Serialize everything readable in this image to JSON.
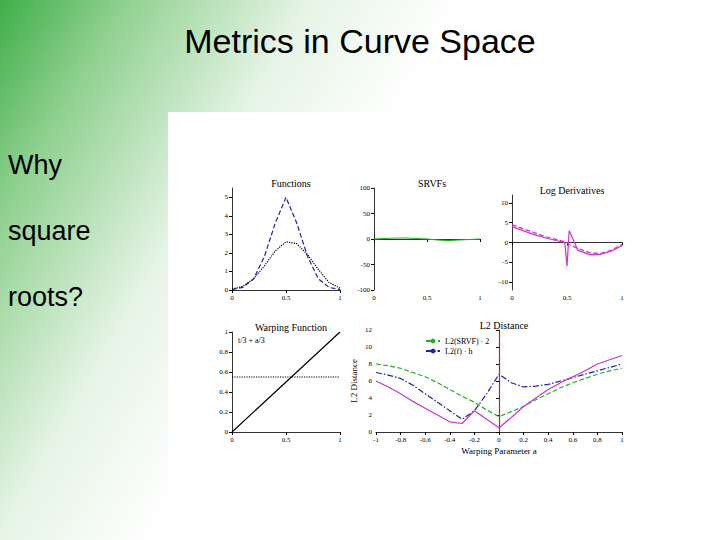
{
  "slide": {
    "title": "Metrics in Curve Space",
    "side_text": [
      "Why",
      "square",
      "roots?"
    ]
  },
  "chart_data": [
    {
      "type": "line",
      "title": "Functions",
      "x": [
        0,
        0.1,
        0.2,
        0.3,
        0.4,
        0.5,
        0.6,
        0.7,
        0.8,
        0.9,
        1
      ],
      "xlim": [
        0,
        1
      ],
      "xticks": [
        0,
        0.5,
        1
      ],
      "ylim": [
        0,
        5.5
      ],
      "yticks": [
        0,
        1,
        2,
        3,
        4,
        5
      ],
      "series": [
        {
          "color": "#1f1fa8",
          "line_style": "dashed",
          "values": [
            0.02,
            0.14,
            0.6,
            1.8,
            3.6,
            5,
            3.6,
            1.8,
            0.6,
            0.14,
            0.02
          ]
        },
        {
          "color": "#000000",
          "line_style": "dotted",
          "values": [
            0.05,
            0.2,
            0.6,
            1.3,
            2.1,
            2.6,
            2.5,
            1.9,
            1.1,
            0.4,
            0.1
          ]
        }
      ]
    },
    {
      "type": "line",
      "title": "SRVFs",
      "x": [
        0,
        0.1,
        0.2,
        0.3,
        0.4,
        0.5,
        0.6,
        0.7,
        0.8,
        0.9,
        1
      ],
      "xlim": [
        0,
        1
      ],
      "xticks": [
        0,
        0.5,
        1
      ],
      "ylim": [
        -100,
        100
      ],
      "yticks": [
        -100,
        -50,
        0,
        50,
        100
      ],
      "series": [
        {
          "color": "#22b022",
          "line_style": "solid",
          "values": [
            0,
            1,
            2,
            2,
            1,
            0,
            -2,
            -3,
            -2,
            -1,
            0
          ]
        }
      ]
    },
    {
      "type": "line",
      "title": "Log Derivatives",
      "x": [
        0,
        0.1,
        0.2,
        0.3,
        0.4,
        0.48,
        0.5,
        0.52,
        0.6,
        0.7,
        0.8,
        0.9,
        1
      ],
      "xlim": [
        0,
        1
      ],
      "xticks": [
        0,
        0.5,
        1
      ],
      "ylim": [
        -12,
        12
      ],
      "yticks": [
        -10,
        -5,
        0,
        5,
        10
      ],
      "series": [
        {
          "color": "#cc33cc",
          "line_style": "dashed",
          "values": [
            4.5,
            3.5,
            2.5,
            1.5,
            0.8,
            0.2,
            0,
            -0.5,
            -1.5,
            -2.5,
            -2.8,
            -2,
            -0.5
          ]
        },
        {
          "color": "#cc33cc",
          "line_style": "solid",
          "values": [
            4,
            3,
            2,
            1.2,
            0.5,
            0,
            -6,
            3,
            -2,
            -3,
            -3,
            -2.2,
            -0.8
          ]
        }
      ]
    },
    {
      "type": "line",
      "title": "Warping Function",
      "annotation": "t/3 + a/3",
      "x": [
        0,
        0.5,
        1
      ],
      "xlim": [
        0,
        1
      ],
      "xticks": [
        0,
        0.5,
        1
      ],
      "ylim": [
        0,
        1
      ],
      "yticks": [
        0,
        0.2,
        0.4,
        0.6,
        0.8,
        1
      ],
      "series": [
        {
          "color": "#000000",
          "line_style": "solid",
          "values": [
            0,
            0.5,
            1
          ]
        },
        {
          "color": "#000000",
          "line_style": "dotted",
          "values": [
            0.55,
            0.55,
            0.55
          ]
        }
      ]
    },
    {
      "type": "line",
      "title": "L2 Distance",
      "xlabel": "Warping Parameter a",
      "ylabel": "L2 Distance",
      "legend": "upper left",
      "x": [
        -1,
        -0.9,
        -0.8,
        -0.7,
        -0.6,
        -0.5,
        -0.4,
        -0.3,
        -0.2,
        -0.1,
        0,
        0.1,
        0.2,
        0.3,
        0.4,
        0.5,
        0.6,
        0.7,
        0.8,
        0.9,
        1
      ],
      "xlim": [
        -1,
        1
      ],
      "xticks": [
        -1,
        -0.8,
        -0.6,
        -0.4,
        -0.2,
        0,
        0.2,
        0.4,
        0.6,
        0.8,
        1
      ],
      "ylim": [
        0,
        12
      ],
      "yticks": [
        0,
        2,
        4,
        6,
        8,
        10,
        12
      ],
      "reference_line": {
        "x": 0,
        "color": "#e41a1c",
        "line_style": "dashed"
      },
      "series": [
        {
          "name": "L2(SRVF) · 2",
          "color": "#22b022",
          "line_style": "dashed",
          "values": [
            8,
            7.8,
            7.5,
            7,
            6.5,
            5.8,
            5,
            4.2,
            3.5,
            2.6,
            1.8,
            2.4,
            3,
            3.8,
            4.5,
            5.2,
            5.8,
            6.3,
            6.8,
            7.2,
            7.5
          ]
        },
        {
          "name": "L2(f) · h",
          "color": "#1f1fa8",
          "line_style": "dashdot",
          "values": [
            7,
            6.7,
            6.3,
            5.5,
            4.5,
            3.5,
            2.5,
            1.5,
            2.5,
            4.5,
            6.8,
            5.8,
            5.3,
            5.4,
            5.6,
            6,
            6.4,
            6.8,
            7.2,
            7.6,
            8
          ]
        },
        {
          "color": "#cc33cc",
          "line_style": "solid",
          "values": [
            6,
            5.3,
            4.5,
            3.6,
            2.8,
            2,
            1.2,
            1,
            2.5,
            1.5,
            0.5,
            1.7,
            3,
            4,
            5,
            5.8,
            6.5,
            7.2,
            8,
            8.5,
            9
          ]
        }
      ]
    }
  ]
}
